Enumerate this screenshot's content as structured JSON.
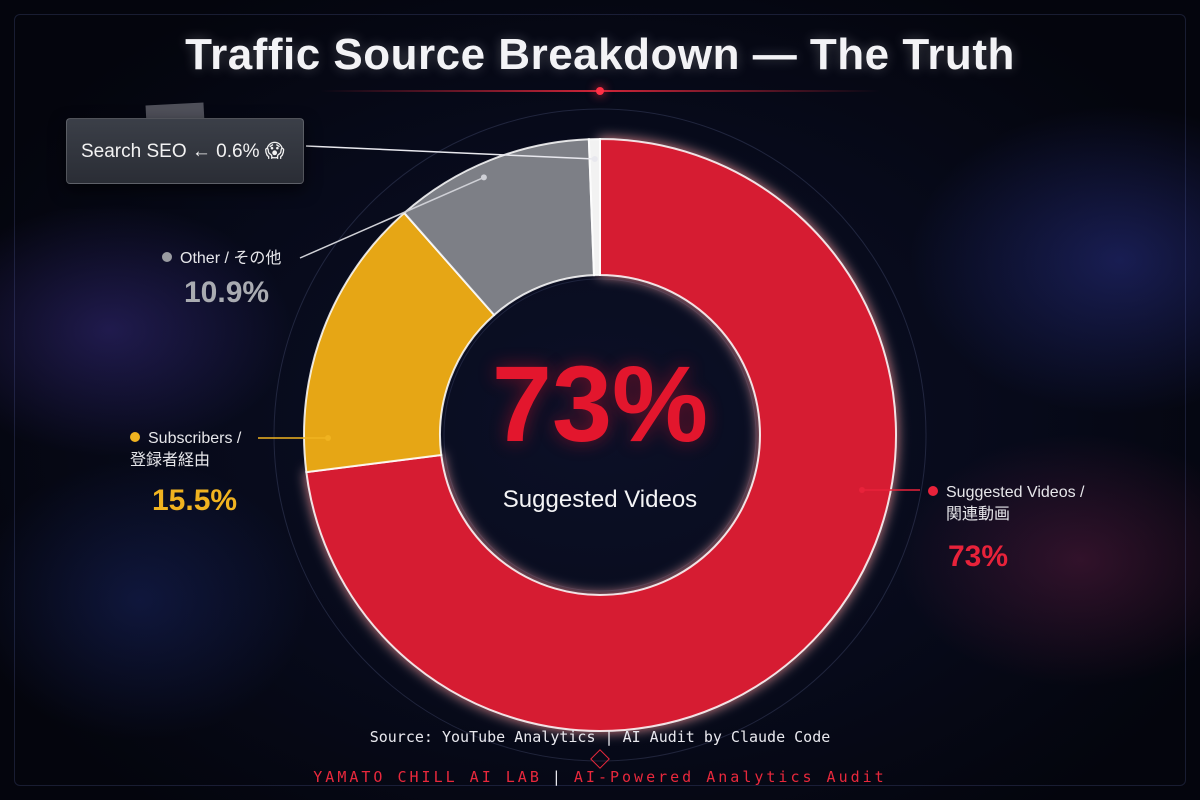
{
  "title": "Traffic Source Breakdown — The Truth",
  "chart_data": {
    "type": "pie",
    "subtype": "donut",
    "start": "top",
    "direction": "clockwise",
    "title": "Traffic Source Breakdown — The Truth",
    "series": [
      {
        "name": "Suggested Videos / 関連動画",
        "name_en": "Suggested Videos",
        "name_ja": "関連動画",
        "value": 73,
        "label": "73%",
        "color": "#d61a30"
      },
      {
        "name": "Subscribers / 登録者経由",
        "name_en": "Subscribers",
        "name_ja": "登録者経由",
        "value": 15.5,
        "label": "15.5%",
        "color": "#e6a615"
      },
      {
        "name": "Other / その他",
        "name_en": "Other",
        "name_ja": "その他",
        "value": 10.9,
        "label": "10.9%",
        "color": "#7d7f86"
      },
      {
        "name": "Search SEO",
        "value": 0.6,
        "label": "0.6%",
        "color": "#f2f2f2"
      }
    ],
    "center": {
      "value": "73%",
      "label": "Suggested Videos"
    }
  },
  "note": {
    "text": "Search SEO ← 0.6% 😱"
  },
  "legend": {
    "other": {
      "name": "Other / その他",
      "value": "10.9%",
      "color": "#9a9ca2",
      "value_color": "#a9abb1"
    },
    "subscribers": {
      "name_line1": "Subscribers /",
      "name_line2": "登録者経由",
      "value": "15.5%",
      "color": "#f0b320"
    },
    "suggested": {
      "name_line1": "Suggested Videos /",
      "name_line2": "関連動画",
      "value": "73%",
      "color": "#e8223a"
    }
  },
  "source": "Source: YouTube Analytics | AI Audit by Claude Code",
  "footer": {
    "left": "YAMATO CHILL AI LAB",
    "sep": "|",
    "right": "AI-Powered Analytics Audit"
  }
}
